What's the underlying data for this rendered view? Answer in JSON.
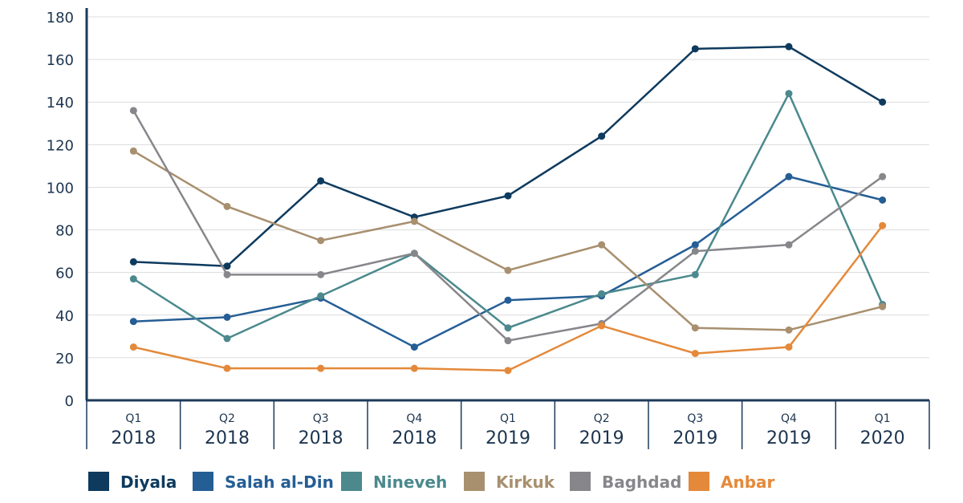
{
  "chart_data": {
    "type": "line",
    "categories": [
      [
        "Q1",
        "2018"
      ],
      [
        "Q2",
        "2018"
      ],
      [
        "Q3",
        "2018"
      ],
      [
        "Q4",
        "2018"
      ],
      [
        "Q1",
        "2019"
      ],
      [
        "Q2",
        "2019"
      ],
      [
        "Q3",
        "2019"
      ],
      [
        "Q4",
        "2019"
      ],
      [
        "Q1",
        "2020"
      ]
    ],
    "ylim": [
      0,
      180
    ],
    "yticks": [
      0,
      20,
      40,
      60,
      80,
      100,
      120,
      140,
      160,
      180
    ],
    "grid": true,
    "legend_position": "bottom",
    "series": [
      {
        "name": "Diyala",
        "color": "#0e3a5e",
        "values": [
          65,
          63,
          103,
          86,
          96,
          124,
          165,
          166,
          140
        ]
      },
      {
        "name": "Salah al-Din",
        "color": "#255e95",
        "values": [
          37,
          39,
          48,
          25,
          47,
          49,
          73,
          105,
          94
        ]
      },
      {
        "name": "Nineveh",
        "color": "#4b898d",
        "values": [
          57,
          29,
          49,
          69,
          34,
          50,
          59,
          144,
          45
        ]
      },
      {
        "name": "Kirkuk",
        "color": "#a88f6e",
        "values": [
          117,
          91,
          75,
          84,
          61,
          73,
          34,
          33,
          44
        ]
      },
      {
        "name": "Baghdad",
        "color": "#87868b",
        "values": [
          136,
          59,
          59,
          69,
          28,
          36,
          70,
          73,
          105
        ]
      },
      {
        "name": "Anbar",
        "color": "#e4893a",
        "values": [
          25,
          15,
          15,
          15,
          14,
          35,
          22,
          25,
          82
        ]
      }
    ]
  }
}
